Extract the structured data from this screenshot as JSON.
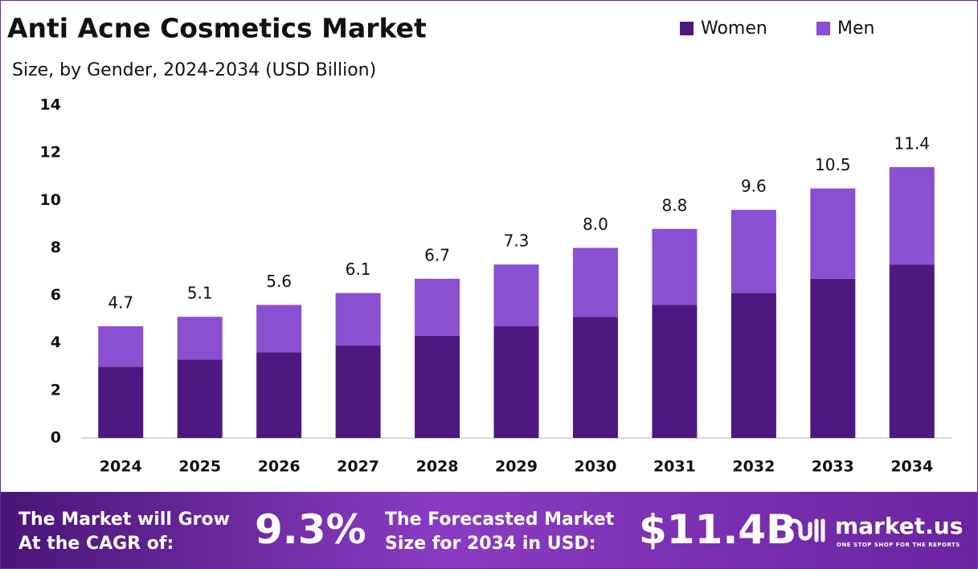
{
  "chart_data": {
    "type": "stacked_bar",
    "title": "Anti Acne Cosmetics Market",
    "subtitle": "Size, by Gender, 2024-2034 (USD Billion)",
    "categories": [
      "2024",
      "2025",
      "2026",
      "2027",
      "2028",
      "2029",
      "2030",
      "2031",
      "2032",
      "2033",
      "2034"
    ],
    "series": [
      {
        "name": "Women",
        "color": "#4e1880",
        "values": [
          3.0,
          3.3,
          3.6,
          3.9,
          4.3,
          4.7,
          5.1,
          5.6,
          6.1,
          6.7,
          7.3
        ]
      },
      {
        "name": "Men",
        "color": "#8b4fd1",
        "values": [
          1.7,
          1.8,
          2.0,
          2.2,
          2.4,
          2.6,
          2.9,
          3.2,
          3.5,
          3.8,
          4.1
        ]
      }
    ],
    "totals": [
      4.7,
      5.1,
      5.6,
      6.1,
      6.7,
      7.3,
      8.0,
      8.8,
      9.6,
      10.5,
      11.4
    ],
    "total_labels": [
      "4.7",
      "5.1",
      "5.6",
      "6.1",
      "6.7",
      "7.3",
      "8.0",
      "8.8",
      "9.6",
      "10.5",
      "11.4"
    ],
    "ylim": [
      0,
      14
    ],
    "yticks": [
      0,
      2,
      4,
      6,
      8,
      10,
      12,
      14
    ],
    "grid": false,
    "legend": "top-right"
  },
  "footer": {
    "cagr_text": "The Market will Grow At the CAGR of:",
    "cagr_value": "9.3%",
    "forecast_text": "The Forecasted Market Size for 2034 in USD:",
    "forecast_value": "$11.4B",
    "brand": "market.us",
    "tagline": "ONE STOP SHOP FOR THE REPORTS"
  }
}
